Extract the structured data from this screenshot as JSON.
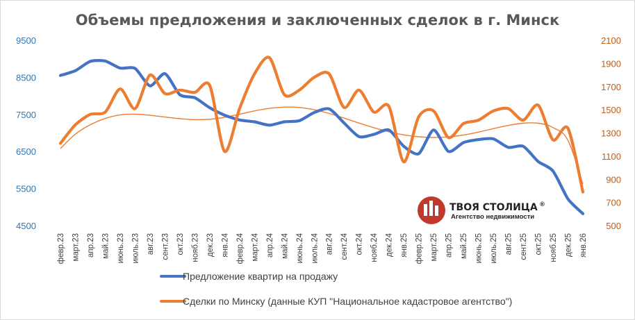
{
  "chart_data": {
    "type": "line",
    "title": "Объемы предложения и заключенных сделок в г. Минск",
    "categories": [
      "февр.23",
      "март.23",
      "апр.23",
      "май.23",
      "июнь.23",
      "июль.23",
      "авг.23",
      "сент.23",
      "окт.23",
      "нояб.23",
      "дек.23",
      "янв.24",
      "февр.24",
      "март.24",
      "апр.24",
      "май.24",
      "июнь.24",
      "июль.24",
      "авг.24",
      "сент.24",
      "окт.24",
      "нояб.24",
      "дек.24",
      "янв.25",
      "февр.25",
      "март.25",
      "апр.25",
      "май.25",
      "июнь.25",
      "июль.25",
      "авг.25",
      "сент.25",
      "окт.25",
      "нояб.25",
      "дек.25",
      "янв.26"
    ],
    "y_left": {
      "min": 4500,
      "max": 9500,
      "ticks": [
        "4500",
        "5500",
        "6500",
        "7500",
        "8500",
        "9500"
      ],
      "color": "#2e75b6"
    },
    "y_right": {
      "min": 500,
      "max": 2100,
      "ticks": [
        "500",
        "700",
        "900",
        "1100",
        "1300",
        "1500",
        "1700",
        "1900",
        "2100"
      ],
      "color": "#c55a11"
    },
    "series": [
      {
        "name": "Предложение квартир на продажу",
        "axis": "left",
        "color": "#4472c4",
        "values": [
          8550,
          8680,
          8930,
          8940,
          8750,
          8740,
          8270,
          8600,
          8030,
          7950,
          7680,
          7480,
          7350,
          7300,
          7210,
          7300,
          7330,
          7550,
          7650,
          7270,
          6900,
          6960,
          7080,
          6640,
          6440,
          7080,
          6500,
          6740,
          6820,
          6840,
          6610,
          6640,
          6230,
          5970,
          5220,
          4820
        ]
      },
      {
        "name": "Сделки по Минску (данные КУП \"Национальное кадастровое агентство\")",
        "axis": "right",
        "color": "#ed7d31",
        "values": [
          1210,
          1370,
          1460,
          1480,
          1680,
          1510,
          1800,
          1640,
          1670,
          1650,
          1710,
          1140,
          1510,
          1810,
          1950,
          1630,
          1670,
          1780,
          1810,
          1520,
          1670,
          1480,
          1530,
          1050,
          1440,
          1490,
          1260,
          1380,
          1410,
          1490,
          1510,
          1410,
          1540,
          1240,
          1340,
          790
        ]
      }
    ],
    "trend_right": [
      1165,
      1290,
      1370,
      1425,
      1455,
      1462,
      1452,
      1437,
      1423,
      1415,
      1418,
      1435,
      1462,
      1490,
      1512,
      1523,
      1520,
      1500,
      1468,
      1428,
      1385,
      1345,
      1310,
      1283,
      1267,
      1261,
      1266,
      1282,
      1307,
      1337,
      1365,
      1384,
      1384,
      1346,
      1235,
      860
    ],
    "legend": [
      {
        "label": "Предложение квартир на продажу",
        "color": "#4472c4"
      },
      {
        "label": "Сделки по Минску (данные КУП \"Национальное кадастровое агентство\")",
        "color": "#ed7d31"
      }
    ]
  },
  "logo": {
    "name": "ТВОЯ СТОЛИЦА",
    "mark": "®",
    "tagline": "Агентство недвижимости",
    "color": "#c0392b"
  }
}
